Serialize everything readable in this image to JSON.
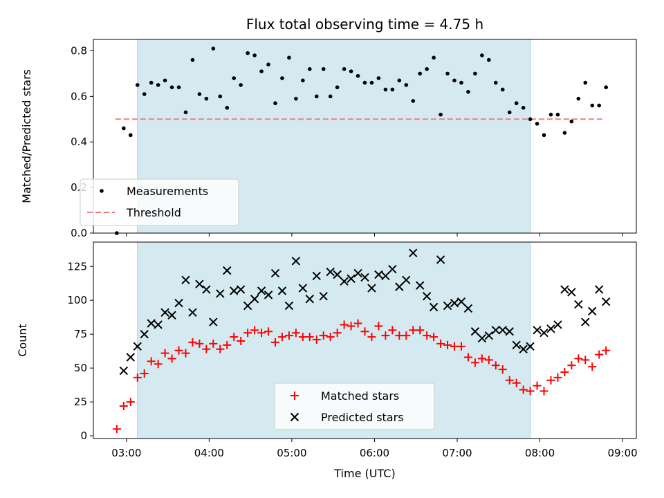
{
  "chart_data": [
    {
      "type": "scatter",
      "title": "Flux total observing time = 4.75 h",
      "xlabel": "",
      "ylabel": "Matched/Predicted stars",
      "ylim": [
        0,
        0.85
      ],
      "yticks": [
        0.0,
        0.2,
        0.4,
        0.6,
        0.8
      ],
      "ytick_labels": [
        "0.0",
        "0.2",
        "0.4",
        "0.6",
        "0.8"
      ],
      "highlight_span": [
        "03:08",
        "07:53"
      ],
      "span_color": "#d4eaf0",
      "legend_placement": "lower-left",
      "threshold": {
        "name": "Threshold",
        "value": 0.5,
        "x_range": [
          "02:52",
          "08:47"
        ],
        "color": "#f07f7f"
      },
      "series": [
        {
          "name": "Measurements",
          "color": "#000000",
          "x": [
            "02:53",
            "02:58",
            "03:03",
            "03:08",
            "03:13",
            "03:18",
            "03:23",
            "03:28",
            "03:33",
            "03:38",
            "03:43",
            "03:48",
            "03:53",
            "03:58",
            "04:03",
            "04:08",
            "04:13",
            "04:18",
            "04:23",
            "04:28",
            "04:33",
            "04:38",
            "04:43",
            "04:48",
            "04:53",
            "04:58",
            "05:03",
            "05:08",
            "05:13",
            "05:18",
            "05:23",
            "05:28",
            "05:33",
            "05:38",
            "05:43",
            "05:48",
            "05:53",
            "05:58",
            "06:03",
            "06:08",
            "06:13",
            "06:18",
            "06:23",
            "06:28",
            "06:33",
            "06:38",
            "06:43",
            "06:48",
            "06:53",
            "06:58",
            "07:03",
            "07:08",
            "07:13",
            "07:18",
            "07:23",
            "07:28",
            "07:33",
            "07:38",
            "07:43",
            "07:48",
            "07:53",
            "07:58",
            "08:03",
            "08:08",
            "08:13",
            "08:18",
            "08:23",
            "08:28",
            "08:33",
            "08:38",
            "08:43",
            "08:48"
          ],
          "y": [
            0.0,
            0.46,
            0.43,
            0.65,
            0.61,
            0.66,
            0.65,
            0.67,
            0.64,
            0.64,
            0.53,
            0.76,
            0.61,
            0.59,
            0.81,
            0.6,
            0.55,
            0.68,
            0.65,
            0.79,
            0.78,
            0.71,
            0.74,
            0.57,
            0.68,
            0.77,
            0.59,
            0.67,
            0.72,
            0.6,
            0.72,
            0.6,
            0.64,
            0.72,
            0.71,
            0.69,
            0.66,
            0.66,
            0.68,
            0.63,
            0.63,
            0.67,
            0.65,
            0.58,
            0.7,
            0.72,
            0.77,
            0.52,
            0.7,
            0.67,
            0.66,
            0.62,
            0.7,
            0.78,
            0.76,
            0.66,
            0.63,
            0.53,
            0.57,
            0.55,
            0.5,
            0.48,
            0.43,
            0.52,
            0.52,
            0.44,
            0.49,
            0.59,
            0.66,
            0.56,
            0.56,
            0.64
          ]
        }
      ]
    },
    {
      "type": "scatter",
      "title": "",
      "xlabel": "Time (UTC)",
      "ylabel": "Count",
      "ylim": [
        -2,
        143
      ],
      "yticks": [
        0,
        25,
        50,
        75,
        100,
        125
      ],
      "ytick_labels": [
        "0",
        "25",
        "50",
        "75",
        "100",
        "125"
      ],
      "xlim": [
        "02:36",
        "09:10"
      ],
      "xticks": [
        "03:00",
        "04:00",
        "05:00",
        "06:00",
        "07:00",
        "08:00",
        "09:00"
      ],
      "xtick_labels": [
        "03:00",
        "04:00",
        "05:00",
        "06:00",
        "07:00",
        "08:00",
        "09:00"
      ],
      "highlight_span": [
        "03:08",
        "07:53"
      ],
      "span_color": "#d4eaf0",
      "legend_placement": "lower-center",
      "series": [
        {
          "name": "Matched stars",
          "marker": "plus",
          "color": "#ff0000",
          "x": [
            "02:53",
            "02:58",
            "03:03",
            "03:08",
            "03:13",
            "03:18",
            "03:23",
            "03:28",
            "03:33",
            "03:38",
            "03:43",
            "03:48",
            "03:53",
            "03:58",
            "04:03",
            "04:08",
            "04:13",
            "04:18",
            "04:23",
            "04:28",
            "04:33",
            "04:38",
            "04:43",
            "04:48",
            "04:53",
            "04:58",
            "05:03",
            "05:08",
            "05:13",
            "05:18",
            "05:23",
            "05:28",
            "05:33",
            "05:38",
            "05:43",
            "05:48",
            "05:53",
            "05:58",
            "06:03",
            "06:08",
            "06:13",
            "06:18",
            "06:23",
            "06:28",
            "06:33",
            "06:38",
            "06:43",
            "06:48",
            "06:53",
            "06:58",
            "07:03",
            "07:08",
            "07:13",
            "07:18",
            "07:23",
            "07:28",
            "07:33",
            "07:38",
            "07:43",
            "07:48",
            "07:53",
            "07:58",
            "08:03",
            "08:08",
            "08:13",
            "08:18",
            "08:23",
            "08:28",
            "08:33",
            "08:38",
            "08:43",
            "08:48"
          ],
          "y": [
            5,
            22,
            25,
            43,
            46,
            55,
            53,
            61,
            57,
            63,
            61,
            69,
            68,
            64,
            68,
            64,
            67,
            73,
            70,
            76,
            78,
            76,
            77,
            69,
            73,
            74,
            76,
            73,
            73,
            71,
            74,
            73,
            76,
            82,
            81,
            83,
            77,
            73,
            81,
            74,
            78,
            74,
            74,
            78,
            78,
            74,
            73,
            68,
            67,
            66,
            66,
            58,
            54,
            57,
            56,
            52,
            49,
            41,
            39,
            34,
            33,
            37,
            33,
            41,
            43,
            47,
            52,
            57,
            56,
            51,
            60,
            63
          ]
        },
        {
          "name": "Predicted stars",
          "marker": "x",
          "color": "#000000",
          "x": [
            "02:58",
            "03:03",
            "03:08",
            "03:13",
            "03:18",
            "03:23",
            "03:28",
            "03:33",
            "03:38",
            "03:43",
            "03:48",
            "03:53",
            "03:58",
            "04:03",
            "04:08",
            "04:13",
            "04:18",
            "04:23",
            "04:28",
            "04:33",
            "04:38",
            "04:43",
            "04:48",
            "04:53",
            "04:58",
            "05:03",
            "05:08",
            "05:13",
            "05:18",
            "05:23",
            "05:28",
            "05:33",
            "05:38",
            "05:43",
            "05:48",
            "05:53",
            "05:58",
            "06:03",
            "06:08",
            "06:13",
            "06:18",
            "06:23",
            "06:28",
            "06:33",
            "06:38",
            "06:43",
            "06:48",
            "06:53",
            "06:58",
            "07:03",
            "07:08",
            "07:13",
            "07:18",
            "07:23",
            "07:28",
            "07:33",
            "07:38",
            "07:43",
            "07:48",
            "07:53",
            "07:58",
            "08:03",
            "08:08",
            "08:13",
            "08:18",
            "08:23",
            "08:28",
            "08:33",
            "08:38",
            "08:43",
            "08:48"
          ],
          "y": [
            48,
            58,
            66,
            75,
            83,
            82,
            91,
            89,
            98,
            115,
            91,
            112,
            108,
            84,
            105,
            122,
            107,
            108,
            96,
            101,
            107,
            104,
            120,
            107,
            96,
            129,
            109,
            101,
            118,
            103,
            121,
            119,
            114,
            116,
            120,
            117,
            109,
            119,
            118,
            123,
            110,
            115,
            135,
            111,
            103,
            95,
            130,
            96,
            98,
            99,
            94,
            77,
            72,
            74,
            78,
            78,
            77,
            67,
            64,
            66,
            78,
            76,
            79,
            82,
            108,
            106,
            97,
            84,
            92,
            108,
            99
          ]
        }
      ]
    }
  ]
}
